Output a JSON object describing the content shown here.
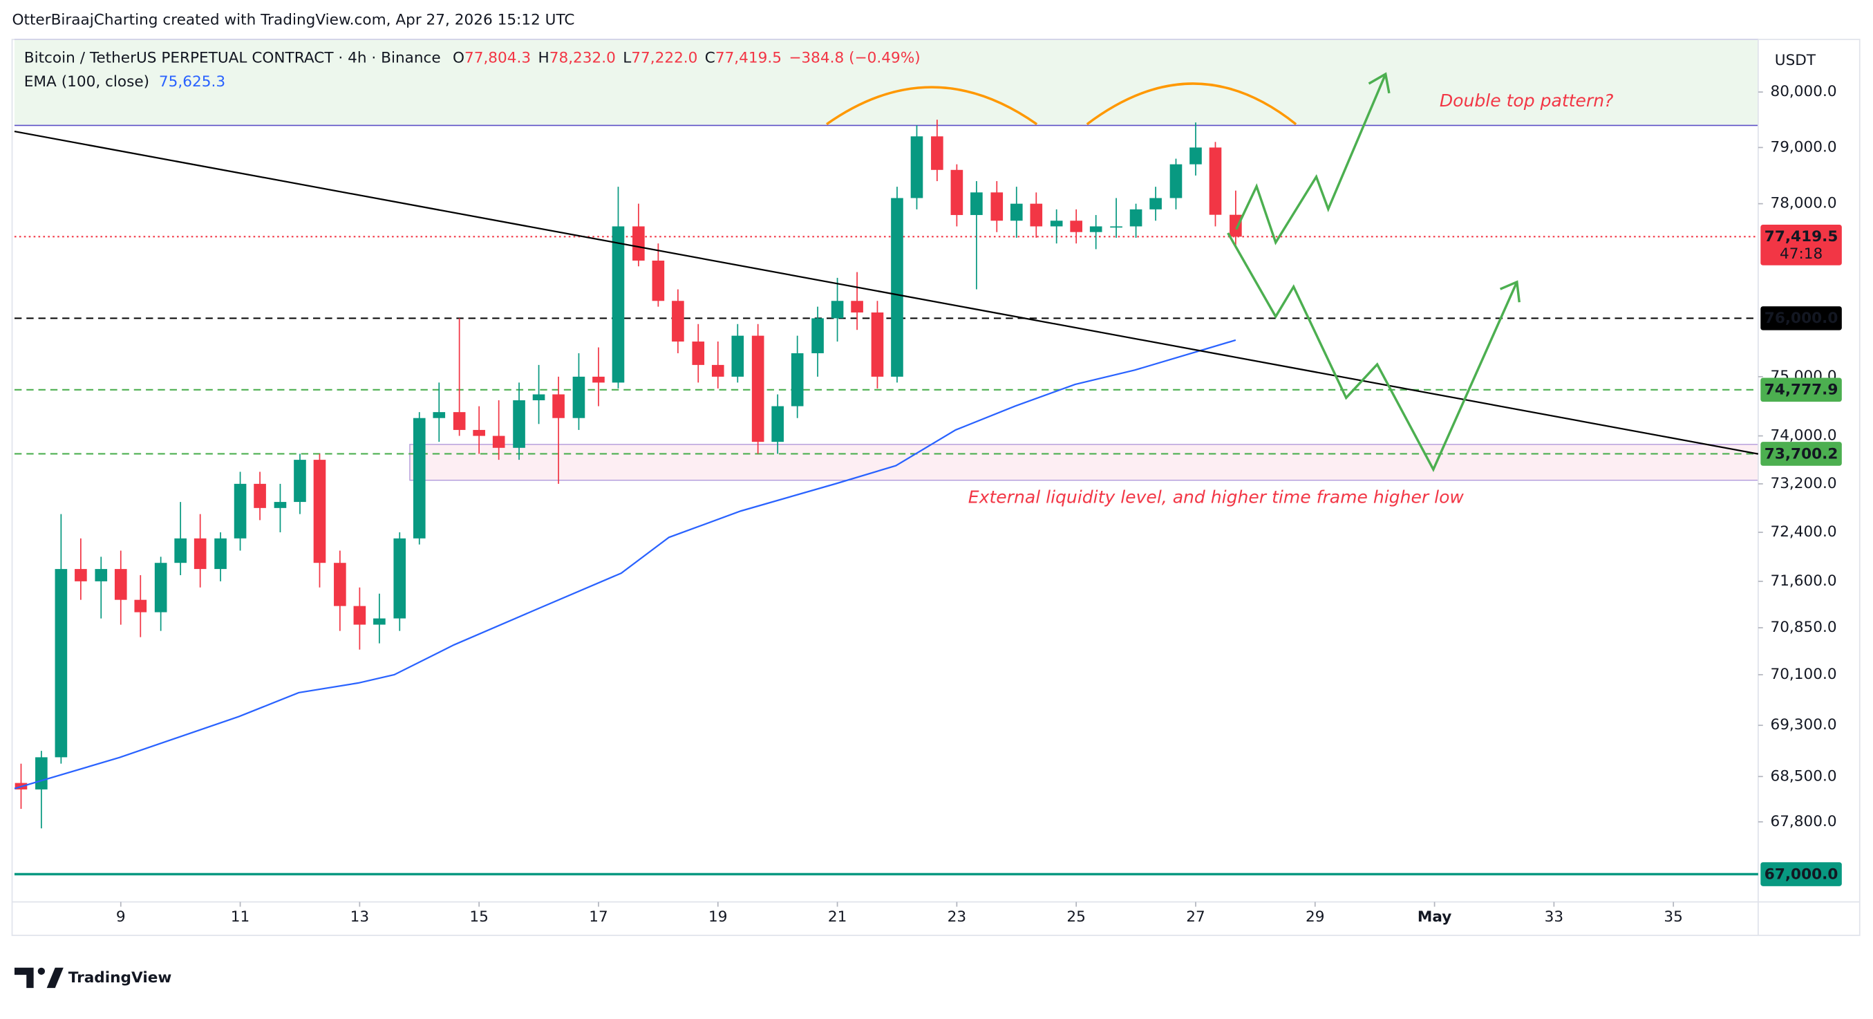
{
  "chart_data": {
    "type": "candlestick",
    "attribution": "OtterBiraajCharting created with TradingView.com, Apr 27, 2026 15:12 UTC",
    "legend": {
      "symbol": "Bitcoin / TetherUS PERPETUAL CONTRACT · 4h · Binance",
      "ohlc": [
        [
          "O",
          "77,804.3"
        ],
        [
          "H",
          "78,232.0"
        ],
        [
          "L",
          "77,222.0"
        ],
        [
          "C",
          "77,419.5"
        ]
      ],
      "change": "−384.8 (−0.49%)"
    },
    "y_unit": "USDT",
    "brand": "TradingView",
    "log_scale": true,
    "up_color": "#089981",
    "down_color": "#f23645",
    "xlim": [
      7.22,
      36.42
    ],
    "xticks": [
      9,
      11,
      13,
      15,
      17,
      19,
      21,
      23,
      25,
      27,
      29,
      {
        "value": 31,
        "label": "May"
      },
      33,
      35
    ],
    "ylim": [
      66580,
      80960
    ],
    "yticks": [
      {
        "value": 80000,
        "label": "80,000.0"
      },
      {
        "value": 79000,
        "label": "79,000.0"
      },
      {
        "value": 78000,
        "label": "78,000.0"
      },
      {
        "value": 75000,
        "label": "75,000.0"
      },
      {
        "value": 74000,
        "label": "74,000.0"
      },
      {
        "value": 73200,
        "label": "73,200.0"
      },
      {
        "value": 72400,
        "label": "72,400.0"
      },
      {
        "value": 71600,
        "label": "71,600.0"
      },
      {
        "value": 70850,
        "label": "70,850.0"
      },
      {
        "value": 70100,
        "label": "70,100.0"
      },
      {
        "value": 69300,
        "label": "69,300.0"
      },
      {
        "value": 68500,
        "label": "68,500.0"
      },
      {
        "value": 67800,
        "label": "67,800.0"
      }
    ],
    "x": [
      7.33,
      7.67,
      8,
      8.33,
      8.67,
      9,
      9.33,
      9.67,
      10,
      10.33,
      10.67,
      11,
      11.33,
      11.67,
      12,
      12.33,
      12.67,
      13,
      13.33,
      13.67,
      14,
      14.33,
      14.67,
      15,
      15.33,
      15.67,
      16,
      16.33,
      16.67,
      17,
      17.33,
      17.67,
      18,
      18.33,
      18.67,
      19,
      19.33,
      19.67,
      20,
      20.33,
      20.67,
      21,
      21.33,
      21.67,
      22,
      22.33,
      22.67,
      23,
      23.33,
      23.67,
      24,
      24.33,
      24.67,
      25,
      25.33,
      25.67,
      26,
      26.33,
      26.67,
      27,
      27.33,
      27.67
    ],
    "open": [
      68400,
      68300,
      68800,
      71800,
      71600,
      71800,
      71300,
      71100,
      71900,
      72300,
      71800,
      72300,
      73200,
      72800,
      72900,
      73600,
      71900,
      71200,
      70900,
      71000,
      72300,
      74300,
      74400,
      74100,
      74000,
      73800,
      74600,
      74700,
      74300,
      75000,
      74900,
      77600,
      77000,
      76300,
      75600,
      75200,
      75000,
      75700,
      73900,
      74500,
      75400,
      76000,
      76300,
      76100,
      75000,
      78100,
      79200,
      78600,
      77800,
      78200,
      77700,
      78000,
      77600,
      77700,
      77500,
      77600,
      77600,
      77900,
      78100,
      78700,
      79000,
      77804.3
    ],
    "high": [
      68700,
      68900,
      72700,
      72300,
      72000,
      72100,
      71700,
      72000,
      72900,
      72700,
      72400,
      73400,
      73400,
      73200,
      73700,
      73700,
      72100,
      71500,
      71400,
      72400,
      74400,
      74900,
      76000,
      74500,
      74600,
      74900,
      75200,
      75000,
      75400,
      75500,
      78300,
      78000,
      77300,
      76500,
      75900,
      75600,
      75900,
      75900,
      74700,
      75700,
      76200,
      76700,
      76800,
      76300,
      78300,
      79400,
      79500,
      78700,
      78400,
      78400,
      78300,
      78200,
      77900,
      77900,
      77800,
      78100,
      78000,
      78300,
      78800,
      79450,
      79100,
      78232
    ],
    "low": [
      68000,
      67700,
      68700,
      71300,
      71000,
      70900,
      70700,
      70800,
      71700,
      71500,
      71600,
      72100,
      72600,
      72400,
      72700,
      71500,
      70800,
      70500,
      70600,
      70800,
      72200,
      73900,
      74000,
      73700,
      73600,
      73600,
      74200,
      73200,
      74100,
      74500,
      74800,
      76900,
      76200,
      75400,
      74900,
      74800,
      74900,
      73700,
      73700,
      74300,
      75000,
      75600,
      75800,
      74800,
      74900,
      77900,
      78400,
      77600,
      76500,
      77500,
      77400,
      77400,
      77300,
      77300,
      77200,
      77400,
      77400,
      77700,
      77900,
      78500,
      77600,
      77222
    ],
    "close": [
      68300,
      68800,
      71800,
      71600,
      71800,
      71300,
      71100,
      71900,
      72300,
      71800,
      72300,
      73200,
      72800,
      72900,
      73600,
      71900,
      71200,
      70900,
      71000,
      72300,
      74300,
      74400,
      74100,
      74000,
      73800,
      74600,
      74700,
      74300,
      75000,
      74900,
      77600,
      77000,
      76300,
      75600,
      75200,
      75000,
      75700,
      73900,
      74500,
      75400,
      76000,
      76300,
      76100,
      75000,
      78100,
      79200,
      78600,
      77800,
      78200,
      77700,
      78000,
      77600,
      77700,
      77500,
      77600,
      77600,
      77900,
      78100,
      78700,
      79000,
      77804.3,
      77419.5
    ],
    "series": [
      {
        "name": "EMA (100, close)",
        "value_label": "75,625.3",
        "color": "#2962ff",
        "x": [
          7.22,
          8.98,
          10.98,
          11.98,
          12.98,
          13.58,
          14.58,
          15.98,
          17.38,
          18.18,
          19.38,
          20.98,
          21.98,
          22.98,
          23.98,
          24.98,
          25.98,
          27.67
        ],
        "values": [
          68313,
          68796,
          69439,
          69816,
          69968,
          70100,
          70576,
          71153,
          71733,
          72317,
          72749,
          73204,
          73502,
          74101,
          74503,
          74868,
          75112,
          75625.3
        ]
      }
    ],
    "levels": [
      {
        "value": 77419.5,
        "label": "77,419.5",
        "countdown": "47:18",
        "color": "#f23645",
        "style": "dotted"
      },
      {
        "value": 76000,
        "label": "76,000.0",
        "color": "#000000",
        "style": "dashed"
      },
      {
        "value": 74777.9,
        "label": "74,777.9",
        "color": "#4caf50",
        "style": "dashed"
      },
      {
        "value": 73700.2,
        "label": "73,700.2",
        "color": "#4caf50",
        "style": "dashed"
      },
      {
        "value": 67000,
        "label": "67,000.0",
        "color": "#089981",
        "style": "solid"
      }
    ],
    "annotations": [
      "Double top pattern?",
      "External liquidity level, and higher time frame higher low"
    ]
  }
}
